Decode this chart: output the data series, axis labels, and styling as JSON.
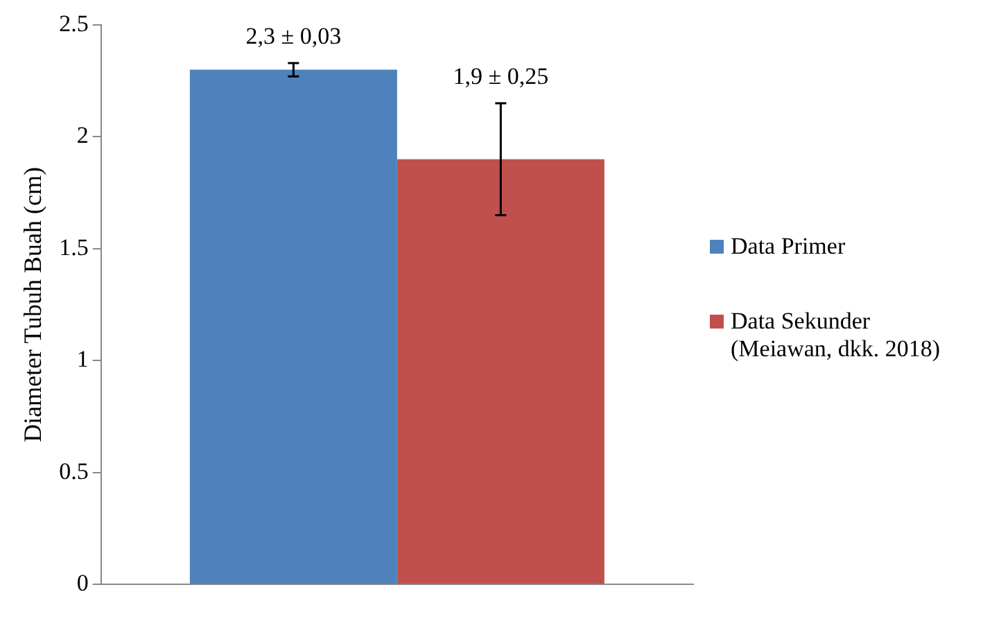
{
  "chart_data": {
    "type": "bar",
    "ylabel": "Diameter Tubuh Buah (cm)",
    "categories": [
      null
    ],
    "series": [
      {
        "name": "Data Primer",
        "color": "#4f81bd",
        "values": [
          2.3
        ],
        "errors": [
          0.03
        ],
        "value_labels": [
          "2,3 ± 0,03"
        ]
      },
      {
        "name": "Data Sekunder (Meiawan, dkk. 2018)",
        "color": "#c0504d",
        "values": [
          1.9
        ],
        "errors": [
          0.25
        ],
        "value_labels": [
          "1,9 ± 0,25"
        ]
      }
    ],
    "ylim": [
      0,
      2.5
    ],
    "yticks": [
      0,
      0.5,
      1,
      1.5,
      2,
      2.5
    ],
    "grid": false,
    "legend": "right"
  }
}
